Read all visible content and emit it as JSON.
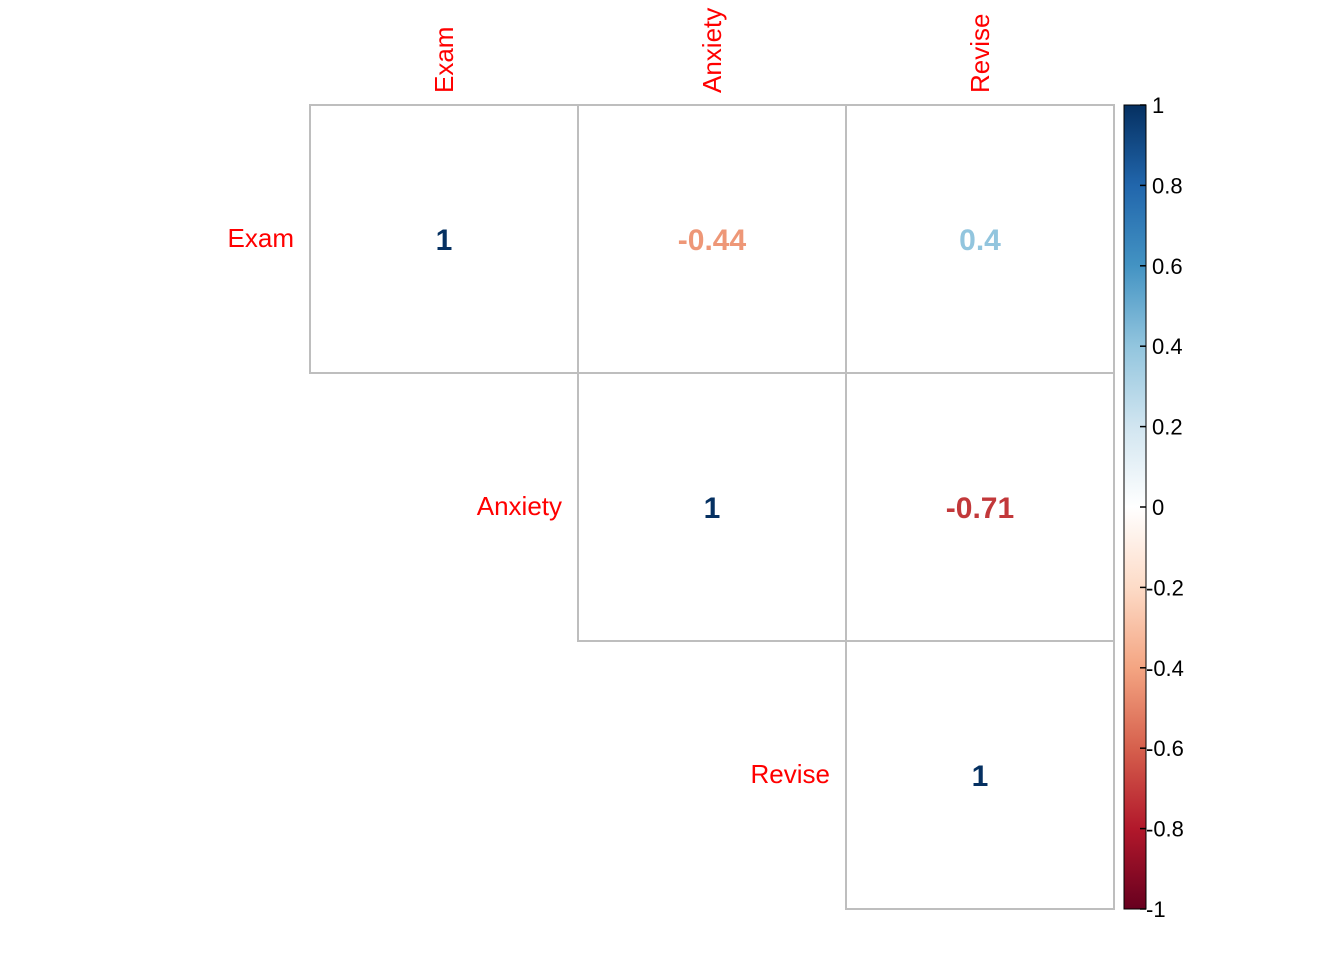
{
  "chart_data": {
    "type": "heatmap",
    "variables": [
      "Exam",
      "Anxiety",
      "Revise"
    ],
    "layout": "upper",
    "cells": [
      {
        "row": "Exam",
        "col": "Exam",
        "value": 1,
        "label": "1"
      },
      {
        "row": "Exam",
        "col": "Anxiety",
        "value": -0.44,
        "label": "-0.44"
      },
      {
        "row": "Exam",
        "col": "Revise",
        "value": 0.4,
        "label": "0.4"
      },
      {
        "row": "Anxiety",
        "col": "Anxiety",
        "value": 1,
        "label": "1"
      },
      {
        "row": "Anxiety",
        "col": "Revise",
        "value": -0.71,
        "label": "-0.71"
      },
      {
        "row": "Revise",
        "col": "Revise",
        "value": 1,
        "label": "1"
      }
    ],
    "colorbar": {
      "range": [
        -1,
        1
      ],
      "ticks": [
        "1",
        "0.8",
        "0.6",
        "0.4",
        "0.2",
        "0",
        "-0.2",
        "-0.4",
        "-0.6",
        "-0.8",
        "-1"
      ],
      "colors": [
        "#67001F",
        "#B2182B",
        "#D6604D",
        "#F4A582",
        "#FDDBC7",
        "#FFFFFF",
        "#D1E5F0",
        "#92C5DE",
        "#4393C3",
        "#2166AC",
        "#053061"
      ]
    },
    "label_color": "#FF0000",
    "grid_color": "#BEBEBE"
  }
}
